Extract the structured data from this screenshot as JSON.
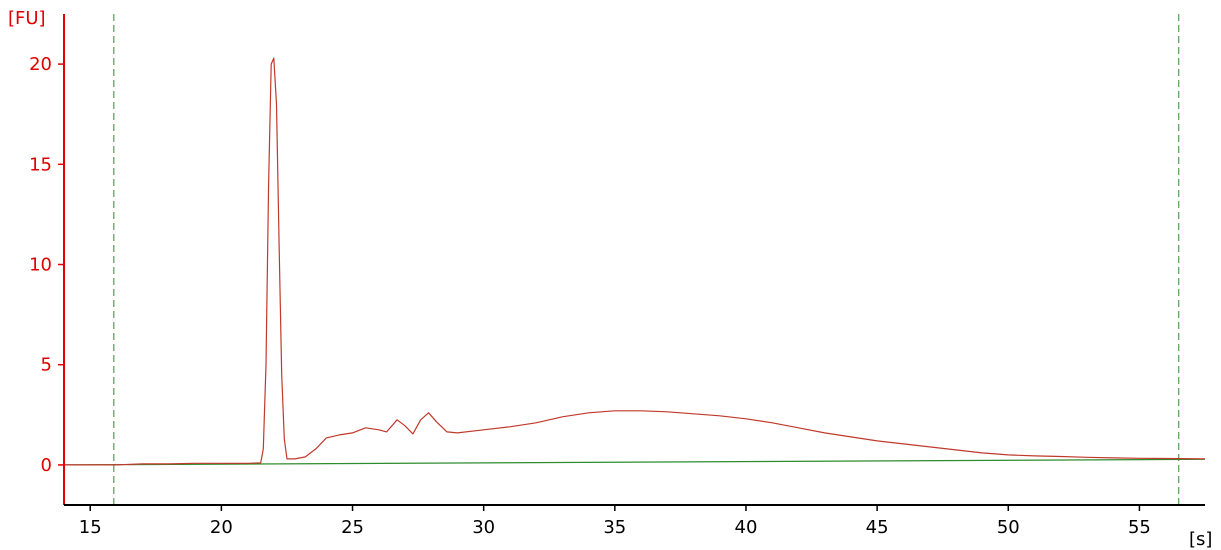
{
  "chart_data": {
    "type": "line",
    "title": "",
    "xlabel": "[s]",
    "ylabel": "[FU]",
    "xlim": [
      14,
      57.5
    ],
    "ylim": [
      -2,
      22.5
    ],
    "xticks": [
      15,
      20,
      25,
      30,
      35,
      40,
      45,
      50,
      55
    ],
    "yticks": [
      0,
      5,
      10,
      15,
      20
    ],
    "grid": false,
    "legend": "none",
    "markers": [
      {
        "name": "lower-marker",
        "x": 15.9
      },
      {
        "name": "upper-marker",
        "x": 56.5
      }
    ],
    "series": [
      {
        "role": "signal",
        "color": "#c0392b",
        "points": [
          [
            14,
            0
          ],
          [
            16,
            0
          ],
          [
            17,
            0.05
          ],
          [
            18,
            0.05
          ],
          [
            19,
            0.08
          ],
          [
            20,
            0.08
          ],
          [
            21,
            0.08
          ],
          [
            21.5,
            0.1
          ],
          [
            21.6,
            0.8
          ],
          [
            21.7,
            5.0
          ],
          [
            21.8,
            14.0
          ],
          [
            21.9,
            20.0
          ],
          [
            22.0,
            20.3
          ],
          [
            22.1,
            18.0
          ],
          [
            22.2,
            11.0
          ],
          [
            22.3,
            4.5
          ],
          [
            22.4,
            1.3
          ],
          [
            22.5,
            0.3
          ],
          [
            22.8,
            0.3
          ],
          [
            23.2,
            0.4
          ],
          [
            23.6,
            0.8
          ],
          [
            24.0,
            1.35
          ],
          [
            24.5,
            1.5
          ],
          [
            25.0,
            1.6
          ],
          [
            25.5,
            1.85
          ],
          [
            26.0,
            1.75
          ],
          [
            26.3,
            1.65
          ],
          [
            26.7,
            2.25
          ],
          [
            27.0,
            1.95
          ],
          [
            27.3,
            1.55
          ],
          [
            27.6,
            2.25
          ],
          [
            27.9,
            2.6
          ],
          [
            28.2,
            2.15
          ],
          [
            28.6,
            1.65
          ],
          [
            29.0,
            1.6
          ],
          [
            30.0,
            1.75
          ],
          [
            31.0,
            1.9
          ],
          [
            32.0,
            2.1
          ],
          [
            33.0,
            2.4
          ],
          [
            34.0,
            2.6
          ],
          [
            35.0,
            2.7
          ],
          [
            36.0,
            2.7
          ],
          [
            37.0,
            2.65
          ],
          [
            38.0,
            2.55
          ],
          [
            39.0,
            2.45
          ],
          [
            40.0,
            2.3
          ],
          [
            41.0,
            2.1
          ],
          [
            42.0,
            1.85
          ],
          [
            43.0,
            1.6
          ],
          [
            44.0,
            1.4
          ],
          [
            45.0,
            1.2
          ],
          [
            46.0,
            1.05
          ],
          [
            47.0,
            0.9
          ],
          [
            48.0,
            0.75
          ],
          [
            49.0,
            0.6
          ],
          [
            50.0,
            0.5
          ],
          [
            51.0,
            0.45
          ],
          [
            52.0,
            0.42
          ],
          [
            53.0,
            0.38
          ],
          [
            54.0,
            0.35
          ],
          [
            55.0,
            0.33
          ],
          [
            56.0,
            0.32
          ],
          [
            57.5,
            0.3
          ]
        ]
      },
      {
        "role": "baseline",
        "color": "#2e8b2e",
        "points": [
          [
            14,
            0
          ],
          [
            57.5,
            0.28
          ]
        ]
      }
    ]
  }
}
